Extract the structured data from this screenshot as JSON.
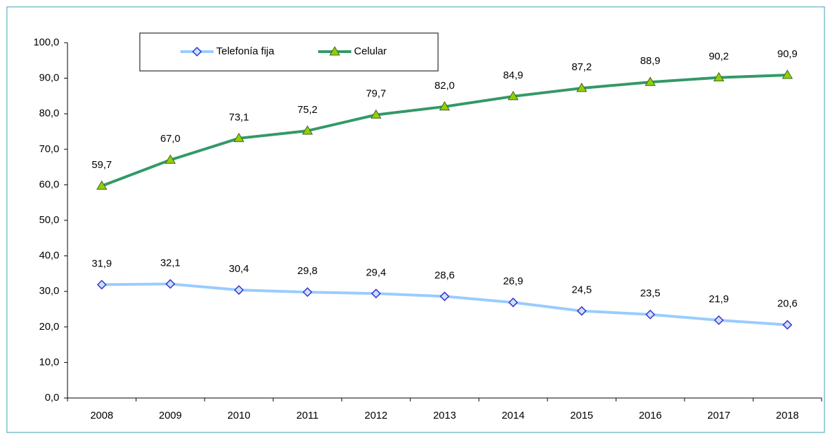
{
  "chart_data": {
    "type": "line",
    "categories": [
      "2008",
      "2009",
      "2010",
      "2011",
      "2012",
      "2013",
      "2014",
      "2015",
      "2016",
      "2017",
      "2018"
    ],
    "series": [
      {
        "name": "Telefonía fija",
        "color": "#99ccff",
        "marker_color": "#3333cc",
        "values": [
          31.9,
          32.1,
          30.4,
          29.8,
          29.4,
          28.6,
          26.9,
          24.5,
          23.5,
          21.9,
          20.6
        ],
        "value_labels": [
          "31,9",
          "32,1",
          "30,4",
          "29,8",
          "29,4",
          "28,6",
          "26,9",
          "24,5",
          "23,5",
          "21,9",
          "20,6"
        ]
      },
      {
        "name": "Celular",
        "color": "#339966",
        "marker_color": "#99cc00",
        "values": [
          59.7,
          67.0,
          73.1,
          75.2,
          79.7,
          82.0,
          84.9,
          87.2,
          88.9,
          90.2,
          90.9
        ],
        "value_labels": [
          "59,7",
          "67,0",
          "73,1",
          "75,2",
          "79,7",
          "82,0",
          "84,9",
          "87,2",
          "88,9",
          "90,2",
          "90,9"
        ]
      }
    ],
    "ylim": [
      0,
      100
    ],
    "yticks": [
      {
        "value": 0,
        "label": "0,0"
      },
      {
        "value": 10,
        "label": "10,0"
      },
      {
        "value": 20,
        "label": "20,0"
      },
      {
        "value": 30,
        "label": "30,0"
      },
      {
        "value": 40,
        "label": "40,0"
      },
      {
        "value": 50,
        "label": "50,0"
      },
      {
        "value": 60,
        "label": "60,0"
      },
      {
        "value": 70,
        "label": "70,0"
      },
      {
        "value": 80,
        "label": "80,0"
      },
      {
        "value": 90,
        "label": "90,0"
      },
      {
        "value": 100,
        "label": "100,0"
      }
    ],
    "grid": false
  }
}
